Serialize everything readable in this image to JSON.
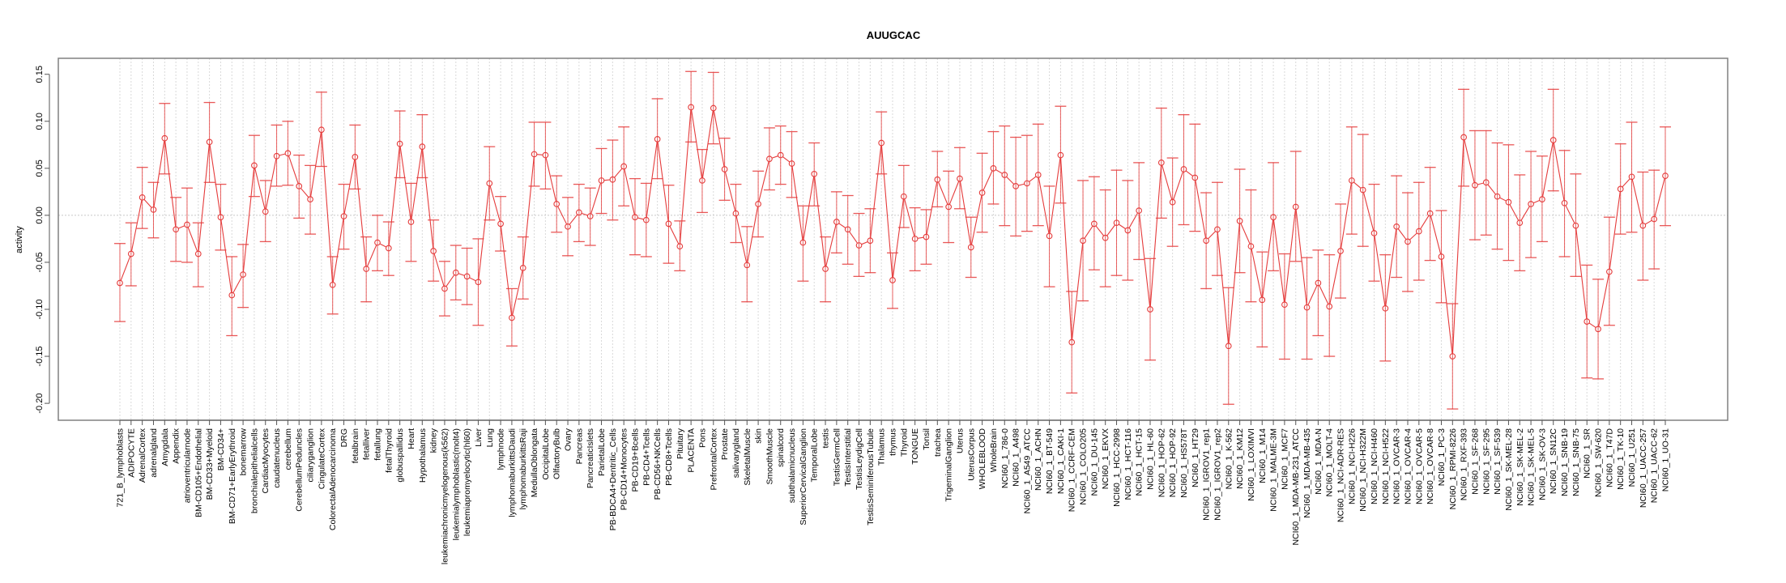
{
  "chart_data": {
    "type": "line",
    "title": "AUUGCAC",
    "xlabel": "",
    "ylabel": "activity",
    "ylim": [
      -0.218,
      0.167
    ],
    "yticks": [
      -0.2,
      -0.15,
      -0.1,
      -0.05,
      0.0,
      0.05,
      0.1,
      0.15
    ],
    "ytick_labels": [
      "-0.20",
      "-0.15",
      "-0.10",
      "-0.05",
      "0.00",
      "0.05",
      "0.10",
      "0.15"
    ],
    "grid": "vertical dotted per category; horizontal dotted at 0",
    "error_bars": true,
    "series_color": "#e53b3b",
    "categories": [
      "721_B_lymphoblasts",
      "ADIPOCYTE",
      "AdrenalCortex",
      "adrenalgland",
      "Amygdala",
      "Appendix",
      "atrioventricularnode",
      "BM-CD105+Endothelial",
      "BM-CD33+Myeloid",
      "BM-CD34+",
      "BM-CD71+EarlyErythroid",
      "bonemarrow",
      "bronchialepithelialcells",
      "CardiacMyocytes",
      "caudatenucleus",
      "cerebellum",
      "CerebellumPeduncles",
      "ciliaryganglion",
      "CingulateCortex",
      "ColorectalAdenocarcinoma",
      "DRG",
      "fetalbrain",
      "fetalliver",
      "fetallung",
      "fetalThyroid",
      "globuspallidus",
      "Heart",
      "Hypothalamus",
      "kidney",
      "leukemiachronicmyelogenous(k562)",
      "leukemialymphoblastic(molt4)",
      "leukemiapromyelocytic(hl60)",
      "Liver",
      "Lung",
      "lymphnode",
      "lymphomaburkittsDaudi",
      "lymphomaburkittsRaji",
      "MedullaOblongata",
      "OccipitalLobe",
      "OlfactoryBulb",
      "Ovary",
      "Pancreas",
      "PancreaticIslets",
      "ParietalLobe",
      "PB-BDCA4+Dentritic_Cells",
      "PB-CD14+Monocytes",
      "PB-CD19+Bcells",
      "PB-CD4+Tcells",
      "PB-CD56+NKCells",
      "PB-CD8+Tcells",
      "Pituitary",
      "PLACENTA",
      "Pons",
      "PrefrontalCortex",
      "Prostate",
      "salivarygland",
      "SkeletalMuscle",
      "skin",
      "SmoothMuscle",
      "spinalcord",
      "subthalamicnucleus",
      "SuperiorCervicalGanglion",
      "TemporalLobe",
      "testis",
      "TestisGermCell",
      "TestisInterstitial",
      "TestisLeydigCell",
      "TestisSeminiferousTubule",
      "Thalamus",
      "thymus",
      "Thyroid",
      "TONGUE",
      "Tonsil",
      "trachea",
      "TrigeminalGanglion",
      "Uterus",
      "UterusCorpus",
      "WHOLEBLOOD",
      "WholeBrain",
      "NCI60_1_786-0",
      "NCI60_1_A498",
      "NCI60_1_A549_ATCC",
      "NCI60_1_ACHN",
      "NCI60_1_BT-549",
      "NCI60_1_CAKI-1",
      "NCI60_1_CCRF-CEM",
      "NCI60_1_COLO205",
      "NCI60_1_DU-145",
      "NCI60_1_EKVX",
      "NCI60_1_HCC-2998",
      "NCI60_1_HCT-116",
      "NCI60_1_HCT-15",
      "NCI60_1_HL-60",
      "NCI60_1_HOP-62",
      "NCI60_1_HOP-92",
      "NCI60_1_HS578T",
      "NCI60_1_HT29",
      "NCI60_1_IGROV1_rep1",
      "NCI60_1_IGROV1_rep2",
      "NCI60_1_K-562",
      "NCI60_1_KM12",
      "NCI60_1_LOXIMVI",
      "NCI60_1_M14",
      "NCI60_1_MALME-3M",
      "NCI60_1_MCF7",
      "NCI60_1_MDA-MB-231_ATCC",
      "NCI60_1_MDA-MB-435",
      "NCI60_1_MDA-N",
      "NCI60_1_MOLT-4",
      "NCI60_1_NCI-ADR-RES",
      "NCI60_1_NCI-H226",
      "NCI60_1_NCI-H322M",
      "NCI60_1_NCI-H460",
      "NCI60_1_NCI-H522",
      "NCI60_1_OVCAR-3",
      "NCI60_1_OVCAR-4",
      "NCI60_1_OVCAR-5",
      "NCI60_1_OVCAR-8",
      "NCI60_1_PC-3",
      "NCI60_1_RPMI-8226",
      "NCI60_1_RXF-393",
      "NCI60_1_SF-268",
      "NCI60_1_SF-295",
      "NCI60_1_SF-539",
      "NCI60_1_SK-MEL-28",
      "NCI60_1_SK-MEL-2",
      "NCI60_1_SK-MEL-5",
      "NCI60_1_SK-OV-3",
      "NCI60_1_SN12C",
      "NCI60_1_SNB-19",
      "NCI60_1_SNB-75",
      "NCI60_1_SR",
      "NCI60_1_SW-620",
      "NCI60_1_T47D",
      "NCI60_1_TK-10",
      "NCI60_1_U251",
      "NCI60_1_UACC-257",
      "NCI60_1_UACC-62",
      "NCI60_1_UO-31"
    ],
    "series": [
      {
        "name": "activity",
        "values": [
          -0.072,
          -0.041,
          0.019,
          0.006,
          0.082,
          -0.015,
          -0.01,
          -0.041,
          0.078,
          -0.002,
          -0.085,
          -0.063,
          0.053,
          0.004,
          0.063,
          0.066,
          0.031,
          0.017,
          0.091,
          -0.074,
          -0.001,
          0.062,
          -0.057,
          -0.029,
          -0.035,
          0.076,
          -0.007,
          0.073,
          -0.038,
          -0.078,
          -0.061,
          -0.065,
          -0.071,
          0.034,
          -0.009,
          -0.109,
          -0.056,
          0.065,
          0.064,
          0.012,
          -0.012,
          0.003,
          -0.001,
          0.037,
          0.038,
          0.052,
          -0.002,
          -0.005,
          0.081,
          -0.009,
          -0.033,
          0.115,
          0.037,
          0.114,
          0.049,
          0.002,
          -0.053,
          0.012,
          0.06,
          0.064,
          0.055,
          -0.029,
          0.044,
          -0.057,
          -0.007,
          -0.015,
          -0.032,
          -0.027,
          0.077,
          -0.069,
          0.02,
          -0.025,
          -0.023,
          0.038,
          0.009,
          0.039,
          -0.034,
          0.024,
          0.05,
          0.043,
          0.031,
          0.034,
          0.043,
          -0.022,
          0.064,
          -0.135,
          -0.027,
          -0.009,
          -0.024,
          -0.008,
          -0.016,
          0.005,
          -0.1,
          0.056,
          0.014,
          0.049,
          0.04,
          -0.027,
          -0.015,
          -0.139,
          -0.006,
          -0.033,
          -0.09,
          -0.002,
          -0.095,
          0.009,
          -0.098,
          -0.072,
          -0.097,
          -0.038,
          0.037,
          0.027,
          -0.019,
          -0.099,
          -0.012,
          -0.028,
          -0.017,
          0.002,
          -0.044,
          -0.15,
          0.083,
          0.032,
          0.035,
          0.02,
          0.014,
          -0.008,
          0.012,
          0.017,
          0.08,
          0.013,
          -0.011,
          -0.113,
          -0.121,
          -0.06,
          0.028,
          0.041,
          -0.011,
          -0.004,
          0.042
        ],
        "upper": [
          -0.03,
          -0.008,
          0.051,
          0.035,
          0.119,
          0.019,
          0.029,
          -0.008,
          0.12,
          0.033,
          -0.044,
          -0.031,
          0.085,
          0.037,
          0.096,
          0.1,
          0.064,
          0.053,
          0.131,
          -0.044,
          0.033,
          0.096,
          -0.023,
          0.0,
          -0.007,
          0.111,
          0.034,
          0.107,
          -0.005,
          -0.049,
          -0.032,
          -0.035,
          -0.025,
          0.073,
          0.02,
          -0.078,
          -0.023,
          0.099,
          0.099,
          0.042,
          0.019,
          0.033,
          0.029,
          0.071,
          0.08,
          0.094,
          0.039,
          0.034,
          0.124,
          0.032,
          -0.006,
          0.153,
          0.07,
          0.152,
          0.082,
          0.033,
          -0.012,
          0.047,
          0.093,
          0.095,
          0.089,
          0.01,
          0.077,
          -0.023,
          0.025,
          0.021,
          0.002,
          0.007,
          0.11,
          -0.04,
          0.053,
          0.008,
          0.006,
          0.068,
          0.047,
          0.072,
          -0.002,
          0.066,
          0.089,
          0.095,
          0.083,
          0.085,
          0.097,
          0.031,
          0.116,
          -0.081,
          0.037,
          0.041,
          0.027,
          0.048,
          0.037,
          0.056,
          -0.046,
          0.114,
          0.061,
          0.107,
          0.097,
          0.024,
          0.035,
          -0.077,
          0.049,
          0.027,
          -0.039,
          0.056,
          -0.041,
          0.068,
          -0.045,
          -0.037,
          -0.042,
          0.012,
          0.094,
          0.086,
          0.033,
          -0.042,
          0.042,
          0.024,
          0.035,
          0.051,
          0.005,
          -0.094,
          0.134,
          0.09,
          0.09,
          0.077,
          0.075,
          0.043,
          0.068,
          0.063,
          0.134,
          0.069,
          0.044,
          -0.053,
          -0.068,
          -0.002,
          0.076,
          0.099,
          0.046,
          0.048,
          0.094
        ],
        "lower": [
          -0.113,
          -0.075,
          -0.014,
          -0.024,
          0.044,
          -0.049,
          -0.05,
          -0.076,
          0.035,
          -0.037,
          -0.128,
          -0.098,
          0.02,
          -0.028,
          0.031,
          0.032,
          -0.003,
          -0.02,
          0.052,
          -0.105,
          -0.036,
          0.028,
          -0.092,
          -0.059,
          -0.064,
          0.04,
          -0.049,
          0.04,
          -0.07,
          -0.107,
          -0.09,
          -0.095,
          -0.117,
          -0.005,
          -0.038,
          -0.139,
          -0.089,
          0.031,
          0.028,
          -0.018,
          -0.043,
          -0.028,
          -0.032,
          0.002,
          -0.005,
          0.01,
          -0.042,
          -0.044,
          0.039,
          -0.051,
          -0.059,
          0.078,
          0.003,
          0.076,
          0.016,
          -0.029,
          -0.092,
          -0.023,
          0.027,
          0.033,
          0.019,
          -0.07,
          0.01,
          -0.092,
          -0.04,
          -0.052,
          -0.065,
          -0.061,
          0.044,
          -0.099,
          -0.013,
          -0.059,
          -0.052,
          0.009,
          -0.029,
          0.007,
          -0.066,
          -0.018,
          0.012,
          -0.011,
          -0.022,
          -0.017,
          -0.011,
          -0.076,
          0.013,
          -0.189,
          -0.091,
          -0.058,
          -0.076,
          -0.064,
          -0.069,
          -0.047,
          -0.154,
          -0.003,
          -0.033,
          -0.01,
          -0.017,
          -0.078,
          -0.064,
          -0.201,
          -0.061,
          -0.092,
          -0.14,
          -0.059,
          -0.153,
          -0.049,
          -0.153,
          -0.128,
          -0.15,
          -0.088,
          -0.02,
          -0.033,
          -0.07,
          -0.155,
          -0.066,
          -0.081,
          -0.069,
          -0.048,
          -0.093,
          -0.206,
          0.031,
          -0.026,
          -0.021,
          -0.036,
          -0.048,
          -0.059,
          -0.045,
          -0.028,
          0.026,
          -0.044,
          -0.065,
          -0.173,
          -0.174,
          -0.117,
          -0.02,
          -0.018,
          -0.069,
          -0.057,
          -0.011
        ]
      }
    ]
  }
}
